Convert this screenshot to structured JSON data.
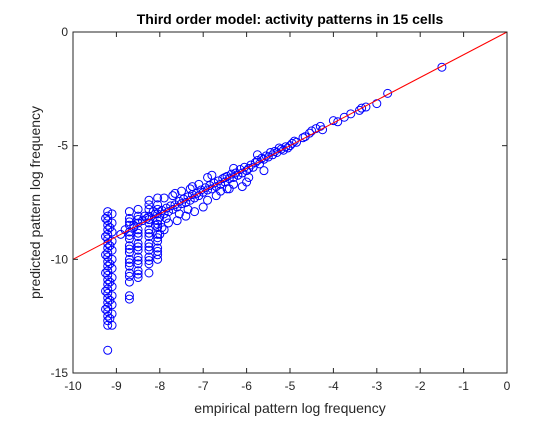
{
  "chart_data": {
    "type": "scatter",
    "title": "Third order model: activity patterns in 15 cells",
    "xlabel": "empirical pattern log frequency",
    "ylabel": "predicted pattern log frequency",
    "xlim": [
      -10,
      0
    ],
    "ylim": [
      -15,
      0
    ],
    "xticks": [
      -10,
      -9,
      -8,
      -7,
      -6,
      -5,
      -4,
      -3,
      -2,
      -1,
      0
    ],
    "yticks": [
      -15,
      -10,
      -5,
      0
    ],
    "grid": false,
    "legend": "none",
    "marker": "open-circle",
    "marker_color": "#0000ff",
    "reference_line": {
      "x": [
        -10,
        0
      ],
      "y": [
        -10,
        0
      ],
      "color": "#ff0000"
    },
    "series": [
      {
        "points": [
          [
            -1.5,
            -1.55
          ],
          [
            -2.75,
            -2.7
          ],
          [
            -3.0,
            -3.15
          ],
          [
            -3.25,
            -3.3
          ],
          [
            -3.35,
            -3.35
          ],
          [
            -3.4,
            -3.45
          ],
          [
            -3.6,
            -3.6
          ],
          [
            -3.75,
            -3.75
          ],
          [
            -3.9,
            -3.95
          ],
          [
            -4.0,
            -3.9
          ],
          [
            -4.25,
            -4.3
          ],
          [
            -4.3,
            -4.15
          ],
          [
            -4.4,
            -4.25
          ],
          [
            -4.5,
            -4.35
          ],
          [
            -4.55,
            -4.45
          ],
          [
            -4.65,
            -4.6
          ],
          [
            -4.7,
            -4.65
          ],
          [
            -4.85,
            -4.85
          ],
          [
            -4.9,
            -4.8
          ],
          [
            -4.95,
            -4.9
          ],
          [
            -5.0,
            -5.0
          ],
          [
            -5.05,
            -5.1
          ],
          [
            -5.1,
            -5.05
          ],
          [
            -5.15,
            -5.2
          ],
          [
            -5.2,
            -5.15
          ],
          [
            -5.25,
            -5.1
          ],
          [
            -5.3,
            -5.3
          ],
          [
            -5.35,
            -5.25
          ],
          [
            -5.4,
            -5.4
          ],
          [
            -5.45,
            -5.3
          ],
          [
            -5.5,
            -5.5
          ],
          [
            -5.55,
            -5.45
          ],
          [
            -5.6,
            -5.6
          ],
          [
            -5.65,
            -5.55
          ],
          [
            -5.7,
            -5.8
          ],
          [
            -5.75,
            -5.65
          ],
          [
            -5.8,
            -5.75
          ],
          [
            -5.85,
            -5.95
          ],
          [
            -5.9,
            -5.85
          ],
          [
            -5.95,
            -6.0
          ],
          [
            -6.0,
            -6.1
          ],
          [
            -6.05,
            -5.95
          ],
          [
            -6.1,
            -6.2
          ],
          [
            -6.15,
            -6.05
          ],
          [
            -6.2,
            -6.3
          ],
          [
            -6.25,
            -6.2
          ],
          [
            -6.3,
            -6.4
          ],
          [
            -6.35,
            -6.25
          ],
          [
            -6.4,
            -6.45
          ],
          [
            -6.45,
            -6.35
          ],
          [
            -6.5,
            -6.6
          ],
          [
            -6.55,
            -6.45
          ],
          [
            -6.6,
            -6.7
          ],
          [
            -6.65,
            -6.55
          ],
          [
            -6.7,
            -6.8
          ],
          [
            -6.75,
            -6.65
          ],
          [
            -6.8,
            -6.9
          ],
          [
            -6.85,
            -6.75
          ],
          [
            -6.9,
            -6.95
          ],
          [
            -6.95,
            -6.85
          ],
          [
            -7.0,
            -7.05
          ],
          [
            -7.05,
            -6.95
          ],
          [
            -7.1,
            -7.2
          ],
          [
            -7.15,
            -7.1
          ],
          [
            -7.2,
            -7.3
          ],
          [
            -7.25,
            -7.15
          ],
          [
            -7.3,
            -7.4
          ],
          [
            -7.35,
            -7.25
          ],
          [
            -7.4,
            -7.5
          ],
          [
            -7.45,
            -7.35
          ],
          [
            -7.5,
            -7.55
          ],
          [
            -7.55,
            -7.45
          ],
          [
            -7.6,
            -7.7
          ],
          [
            -7.65,
            -7.6
          ],
          [
            -7.7,
            -7.8
          ],
          [
            -7.75,
            -7.65
          ],
          [
            -7.8,
            -7.9
          ],
          [
            -7.85,
            -7.75
          ],
          [
            -7.9,
            -8.0
          ],
          [
            -7.95,
            -7.85
          ],
          [
            -6.0,
            -6.6
          ],
          [
            -6.1,
            -6.8
          ],
          [
            -6.2,
            -6.3
          ],
          [
            -6.3,
            -6.0
          ],
          [
            -6.4,
            -6.9
          ],
          [
            -6.5,
            -6.4
          ],
          [
            -6.6,
            -7.0
          ],
          [
            -6.7,
            -7.2
          ],
          [
            -6.8,
            -6.3
          ],
          [
            -6.9,
            -7.4
          ],
          [
            -7.0,
            -7.7
          ],
          [
            -7.1,
            -6.7
          ],
          [
            -7.2,
            -7.9
          ],
          [
            -7.3,
            -6.9
          ],
          [
            -7.4,
            -8.1
          ],
          [
            -7.5,
            -7.0
          ],
          [
            -7.6,
            -8.3
          ],
          [
            -7.7,
            -7.2
          ],
          [
            -7.8,
            -8.4
          ],
          [
            -7.9,
            -7.3
          ],
          [
            -5.75,
            -5.4
          ],
          [
            -5.6,
            -6.1
          ],
          [
            -5.95,
            -6.4
          ],
          [
            -6.3,
            -6.7
          ],
          [
            -6.45,
            -6.9
          ],
          [
            -6.9,
            -6.4
          ],
          [
            -7.25,
            -6.8
          ],
          [
            -7.35,
            -7.8
          ],
          [
            -7.55,
            -8.0
          ],
          [
            -7.65,
            -7.1
          ],
          [
            -8.05,
            -7.6
          ],
          [
            -8.05,
            -8.0
          ],
          [
            -8.05,
            -8.3
          ],
          [
            -8.05,
            -8.6
          ],
          [
            -8.05,
            -8.9
          ],
          [
            -8.05,
            -9.2
          ],
          [
            -8.05,
            -9.5
          ],
          [
            -8.05,
            -9.8
          ],
          [
            -8.05,
            -7.3
          ],
          [
            -8.05,
            -7.8
          ],
          [
            -8.05,
            -8.45
          ],
          [
            -8.05,
            -9.05
          ],
          [
            -8.05,
            -9.65
          ],
          [
            -8.05,
            -10.0
          ],
          [
            -8.25,
            -7.4
          ],
          [
            -8.25,
            -7.8
          ],
          [
            -8.25,
            -8.1
          ],
          [
            -8.25,
            -8.4
          ],
          [
            -8.25,
            -8.7
          ],
          [
            -8.25,
            -9.0
          ],
          [
            -8.25,
            -9.3
          ],
          [
            -8.25,
            -9.6
          ],
          [
            -8.25,
            -9.9
          ],
          [
            -8.25,
            -10.2
          ],
          [
            -8.25,
            -7.6
          ],
          [
            -8.25,
            -8.25
          ],
          [
            -8.25,
            -8.85
          ],
          [
            -8.25,
            -9.45
          ],
          [
            -8.25,
            -10.05
          ],
          [
            -8.25,
            -10.6
          ],
          [
            -8.5,
            -7.8
          ],
          [
            -8.5,
            -8.1
          ],
          [
            -8.5,
            -8.4
          ],
          [
            -8.5,
            -8.7
          ],
          [
            -8.5,
            -9.0
          ],
          [
            -8.5,
            -9.3
          ],
          [
            -8.5,
            -9.6
          ],
          [
            -8.5,
            -9.9
          ],
          [
            -8.5,
            -10.2
          ],
          [
            -8.5,
            -10.5
          ],
          [
            -8.5,
            -10.8
          ],
          [
            -8.5,
            -8.25
          ],
          [
            -8.5,
            -8.85
          ],
          [
            -8.5,
            -9.45
          ],
          [
            -8.5,
            -10.05
          ],
          [
            -8.5,
            -10.65
          ],
          [
            -8.7,
            -7.9
          ],
          [
            -8.7,
            -8.2
          ],
          [
            -8.7,
            -8.5
          ],
          [
            -8.7,
            -8.8
          ],
          [
            -8.7,
            -9.1
          ],
          [
            -8.7,
            -9.4
          ],
          [
            -8.7,
            -9.7
          ],
          [
            -8.7,
            -10.0
          ],
          [
            -8.7,
            -10.3
          ],
          [
            -8.7,
            -10.6
          ],
          [
            -8.7,
            -11.0
          ],
          [
            -8.7,
            -11.6
          ],
          [
            -8.7,
            -11.75
          ],
          [
            -8.7,
            -8.35
          ],
          [
            -8.7,
            -8.95
          ],
          [
            -8.7,
            -9.55
          ],
          [
            -8.7,
            -10.15
          ],
          [
            -8.7,
            -10.75
          ],
          [
            -9.2,
            -7.9
          ],
          [
            -9.2,
            -8.1
          ],
          [
            -9.2,
            -8.3
          ],
          [
            -9.2,
            -8.5
          ],
          [
            -9.2,
            -8.7
          ],
          [
            -9.2,
            -8.9
          ],
          [
            -9.2,
            -9.1
          ],
          [
            -9.2,
            -9.3
          ],
          [
            -9.2,
            -9.5
          ],
          [
            -9.2,
            -9.7
          ],
          [
            -9.2,
            -9.9
          ],
          [
            -9.2,
            -10.1
          ],
          [
            -9.2,
            -10.3
          ],
          [
            -9.2,
            -10.5
          ],
          [
            -9.2,
            -10.7
          ],
          [
            -9.2,
            -10.9
          ],
          [
            -9.2,
            -11.1
          ],
          [
            -9.2,
            -11.3
          ],
          [
            -9.2,
            -11.5
          ],
          [
            -9.2,
            -11.7
          ],
          [
            -9.2,
            -11.9
          ],
          [
            -9.2,
            -12.1
          ],
          [
            -9.2,
            -12.3
          ],
          [
            -9.2,
            -12.5
          ],
          [
            -9.2,
            -12.7
          ],
          [
            -9.2,
            -12.9
          ],
          [
            -9.2,
            -14.0
          ],
          [
            -9.1,
            -8.0
          ],
          [
            -9.1,
            -8.4
          ],
          [
            -9.1,
            -8.8
          ],
          [
            -9.1,
            -9.2
          ],
          [
            -9.1,
            -9.6
          ],
          [
            -9.1,
            -10.0
          ],
          [
            -9.1,
            -10.4
          ],
          [
            -9.1,
            -10.8
          ],
          [
            -9.1,
            -11.2
          ],
          [
            -9.1,
            -11.6
          ],
          [
            -9.1,
            -12.0
          ],
          [
            -9.1,
            -12.4
          ],
          [
            -9.1,
            -12.9
          ],
          [
            -9.15,
            -8.6
          ],
          [
            -9.15,
            -9.4
          ],
          [
            -9.15,
            -10.2
          ],
          [
            -9.15,
            -11.0
          ],
          [
            -9.15,
            -11.8
          ],
          [
            -9.15,
            -12.6
          ],
          [
            -9.25,
            -8.2
          ],
          [
            -9.25,
            -9.0
          ],
          [
            -9.25,
            -9.8
          ],
          [
            -9.25,
            -10.6
          ],
          [
            -9.25,
            -11.4
          ],
          [
            -9.25,
            -12.2
          ],
          [
            -8.15,
            -7.9
          ],
          [
            -8.35,
            -8.1
          ],
          [
            -8.6,
            -8.5
          ],
          [
            -8.8,
            -8.7
          ],
          [
            -8.9,
            -8.9
          ],
          [
            -8.4,
            -8.3
          ],
          [
            -8.0,
            -8.15
          ],
          [
            -8.3,
            -8.2
          ],
          [
            -8.6,
            -8.6
          ],
          [
            -8.1,
            -8.5
          ],
          [
            -7.9,
            -8.7
          ],
          [
            -8.0,
            -8.9
          ],
          [
            -7.85,
            -8.2
          ],
          [
            -7.95,
            -8.6
          ],
          [
            -8.1,
            -8.0
          ]
        ]
      }
    ]
  }
}
